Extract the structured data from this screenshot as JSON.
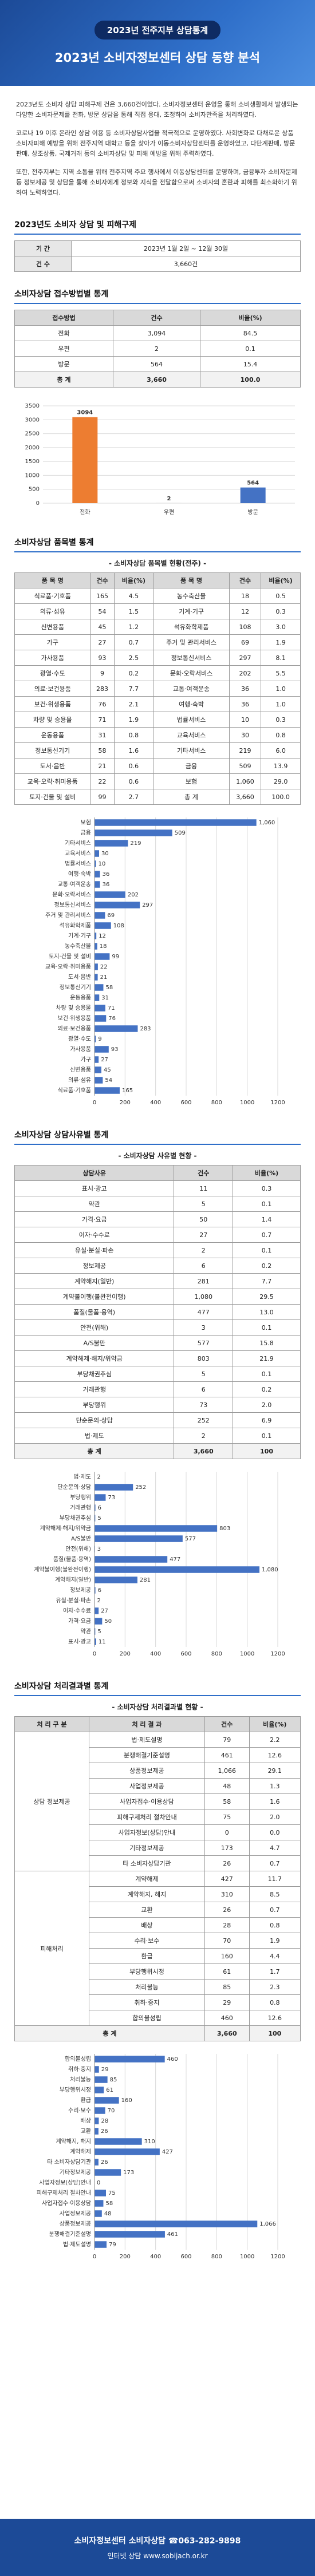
{
  "header": {
    "badge": "2023년 전주지부 상담통계",
    "title": "2023년 소비자정보센터 상담 동향 분석"
  },
  "intro": [
    "2023년도 소비자 상담 피해구제 건은 3,660건이었다. 소비자정보센터 운영을 통해 소비생활에서 발생되는 다양한 소비자문제를 전화, 방문 상담을 통해 직접 응대, 조정하여 소비자만족을 처리하였다.",
    "코로나 19 이후 온라인 상담 이용 등 소비자상담사업을 적극적으로 운영하였다. 사회변화로 다채로운 상품 소비자피해 예방을 위해 전주지역 대학교 등을 찾아가 이동소비자상담센터를 운영하였고, 다단계판매, 방문판매, 상조상품, 국제거래 등의 소비자상담 및 피해 예방을 위해 주력하였다.",
    "또한, 전주지부는 지역 소통을 위해 전주지역 주요 행사에서 이동상담센터를 운영하며, 금융투자 소비자문제 등 정보제공 및 상담을 통해 소비자에게 정보와 지식을 전달함으로써 소비자의 혼란과 피해를 최소화하기 위하여 노력하였다."
  ],
  "summary": {
    "heading": "2023년도 소비자 상담 및 피해구제",
    "rows": [
      [
        "기 간",
        "2023년 1월 2일 ~ 12월 30일"
      ],
      [
        "건 수",
        "3,660건"
      ]
    ]
  },
  "method": {
    "heading": "소비자상담 접수방법별 통계",
    "header": [
      "접수방법",
      "건수",
      "비율(%)"
    ],
    "rows": [
      [
        "전화",
        "3,094",
        "84.5"
      ],
      [
        "우편",
        "2",
        "0.1"
      ],
      [
        "방문",
        "564",
        "15.4"
      ],
      [
        "총 계",
        "3,660",
        "100.0"
      ]
    ]
  },
  "items": {
    "heading": "소비자상담 품목별 통계",
    "subtitle": "- 소비자상담 품목별 현황(전주) -",
    "header": [
      "품 목 명",
      "건수",
      "비율(%)",
      "품 목 명",
      "건수",
      "비율(%)"
    ],
    "rows": [
      [
        "식료품·기호품",
        "165",
        "4.5",
        "농수축산물",
        "18",
        "0.5"
      ],
      [
        "의류·섬유",
        "54",
        "1.5",
        "기계·기구",
        "12",
        "0.3"
      ],
      [
        "신변용품",
        "45",
        "1.2",
        "석유화학제품",
        "108",
        "3.0"
      ],
      [
        "가구",
        "27",
        "0.7",
        "주거 및 관리서비스",
        "69",
        "1.9"
      ],
      [
        "가사용품",
        "93",
        "2.5",
        "정보통신서비스",
        "297",
        "8.1"
      ],
      [
        "광열·수도",
        "9",
        "0.2",
        "문화·오락서비스",
        "202",
        "5.5"
      ],
      [
        "의료·보건용품",
        "283",
        "7.7",
        "교통·여객운송",
        "36",
        "1.0"
      ],
      [
        "보건·위생용품",
        "76",
        "2.1",
        "여행·숙박",
        "36",
        "1.0"
      ],
      [
        "차량 및 승용물",
        "71",
        "1.9",
        "법률서비스",
        "10",
        "0.3"
      ],
      [
        "운동용품",
        "31",
        "0.8",
        "교육서비스",
        "30",
        "0.8"
      ],
      [
        "정보통신기기",
        "58",
        "1.6",
        "기타서비스",
        "219",
        "6.0"
      ],
      [
        "도서·음반",
        "21",
        "0.6",
        "금융",
        "509",
        "13.9"
      ],
      [
        "교육·오락·취미용품",
        "22",
        "0.6",
        "보험",
        "1,060",
        "29.0"
      ],
      [
        "토지·건물 및 설비",
        "99",
        "2.7",
        "총 계",
        "3,660",
        "100.0"
      ]
    ]
  },
  "reasons": {
    "heading": "소비자상담 상담사유별 통계",
    "subtitle": "- 소비자상담 사유별 현황 -",
    "header": [
      "상담사유",
      "건수",
      "비율(%)"
    ],
    "rows": [
      [
        "표시·광고",
        "11",
        "0.3"
      ],
      [
        "약관",
        "5",
        "0.1"
      ],
      [
        "가격·요금",
        "50",
        "1.4"
      ],
      [
        "이자·수수료",
        "27",
        "0.7"
      ],
      [
        "유실·분실·파손",
        "2",
        "0.1"
      ],
      [
        "정보제공",
        "6",
        "0.2"
      ],
      [
        "계약해지(일반)",
        "281",
        "7.7"
      ],
      [
        "계약불이행(불완전이행)",
        "1,080",
        "29.5"
      ],
      [
        "품질(물품·용역)",
        "477",
        "13.0"
      ],
      [
        "안전(위해)",
        "3",
        "0.1"
      ],
      [
        "A/S불만",
        "577",
        "15.8"
      ],
      [
        "계약해제·해지/위약금",
        "803",
        "21.9"
      ],
      [
        "부당채권추심",
        "5",
        "0.1"
      ],
      [
        "거래관행",
        "6",
        "0.2"
      ],
      [
        "부당행위",
        "73",
        "2.0"
      ],
      [
        "단순문의·상담",
        "252",
        "6.9"
      ],
      [
        "법·제도",
        "2",
        "0.1"
      ],
      [
        "총 계",
        "3,660",
        "100"
      ]
    ]
  },
  "results": {
    "heading": "소비자상담 처리결과별 통계",
    "subtitle": "- 소비자상담 처리결과별 현황 -",
    "header": [
      "처 리 구 분",
      "처 리 결 과",
      "건수",
      "비율(%)"
    ],
    "groups": [
      {
        "name": "상담 정보제공",
        "rows": [
          [
            "법·제도설명",
            "79",
            "2.2"
          ],
          [
            "분쟁해결기준설명",
            "461",
            "12.6"
          ],
          [
            "상품정보제공",
            "1,066",
            "29.1"
          ],
          [
            "사업정보제공",
            "48",
            "1.3"
          ],
          [
            "사업자접수·이용상담",
            "58",
            "1.6"
          ],
          [
            "피해구제처리 절차안내",
            "75",
            "2.0"
          ],
          [
            "사업자정보(상담)안내",
            "0",
            "0.0"
          ],
          [
            "기타정보제공",
            "173",
            "4.7"
          ],
          [
            "타 소비자상담기관",
            "26",
            "0.7"
          ]
        ]
      },
      {
        "name": "피해처리",
        "rows": [
          [
            "계약해제",
            "427",
            "11.7"
          ],
          [
            "계약해지, 해지",
            "310",
            "8.5"
          ],
          [
            "교환",
            "26",
            "0.7"
          ],
          [
            "배상",
            "28",
            "0.8"
          ],
          [
            "수리·보수",
            "70",
            "1.9"
          ],
          [
            "환급",
            "160",
            "4.4"
          ],
          [
            "부당행위시정",
            "61",
            "1.7"
          ],
          [
            "처리불능",
            "85",
            "2.3"
          ],
          [
            "취하·중지",
            "29",
            "0.8"
          ],
          [
            "합의불성립",
            "460",
            "12.6"
          ]
        ]
      }
    ],
    "total": [
      "총 계",
      "3,660",
      "100"
    ]
  },
  "chart_data": [
    {
      "type": "bar",
      "categories": [
        "전화",
        "우편",
        "방문"
      ],
      "values": [
        3094,
        2,
        564
      ],
      "colors": [
        "#ed7d31",
        "#a5a5a5",
        "#4472c4"
      ],
      "ylim": [
        0,
        3500
      ],
      "yticks": [
        0,
        500,
        1000,
        1500,
        2000,
        2500,
        3000,
        3500
      ],
      "grid": true
    },
    {
      "type": "barh",
      "color": "#4472c4",
      "grid": true,
      "xlim": [
        0,
        1200
      ],
      "xticks": [
        0,
        200,
        400,
        600,
        800,
        1000,
        1200
      ],
      "categories": [
        "보험",
        "금융",
        "기타서비스",
        "교육서비스",
        "법률서비스",
        "여행·숙박",
        "교통·여객운송",
        "문화·오락서비스",
        "정보통신서비스",
        "주거 및 관리서비스",
        "석유화학제품",
        "기계·기구",
        "농수축산물",
        "토지·건물 및 설비",
        "교육·오락·취미용품",
        "도서·음반",
        "정보통신기기",
        "운동용품",
        "차량 및 승용물",
        "보건·위생용품",
        "의료·보건용품",
        "광열·수도",
        "가사용품",
        "가구",
        "신변용품",
        "의류·섬유",
        "식료품·기호품"
      ],
      "values": [
        1060,
        509,
        219,
        30,
        10,
        36,
        36,
        202,
        297,
        69,
        108,
        12,
        18,
        99,
        22,
        21,
        58,
        31,
        71,
        76,
        283,
        9,
        93,
        27,
        45,
        54,
        165
      ],
      "value_labels": [
        "1,060",
        "509",
        "219",
        "30",
        "10",
        "36",
        "36",
        "202",
        "297",
        "69",
        "108",
        "12",
        "18",
        "99",
        "22",
        "21",
        "58",
        "31",
        "71",
        "76",
        "283",
        "9",
        "93",
        "27",
        "45",
        "54",
        "165"
      ]
    },
    {
      "type": "barh",
      "color": "#4472c4",
      "grid": true,
      "xlim": [
        0,
        1200
      ],
      "xticks": [
        0,
        200,
        400,
        600,
        800,
        1000,
        1200
      ],
      "categories": [
        "법·제도",
        "단순문의·상담",
        "부당행위",
        "거래관행",
        "부당채권추심",
        "계약해제·해지/위약금",
        "A/S불만",
        "안전(위해)",
        "품질(물품·용역)",
        "계약불이행(불완전이행)",
        "계약해지(일반)",
        "정보제공",
        "유실·분실·파손",
        "이자·수수료",
        "가격·요금",
        "약관",
        "표시·광고"
      ],
      "values": [
        2,
        252,
        73,
        6,
        5,
        803,
        577,
        3,
        477,
        1080,
        281,
        6,
        2,
        27,
        50,
        5,
        11
      ],
      "value_labels": [
        "2",
        "252",
        "73",
        "6",
        "5",
        "803",
        "577",
        "3",
        "477",
        "1,080",
        "281",
        "6",
        "2",
        "27",
        "50",
        "5",
        "11"
      ]
    },
    {
      "type": "barh",
      "color": "#4472c4",
      "grid": true,
      "xlim": [
        0,
        1200
      ],
      "xticks": [
        0,
        200,
        400,
        600,
        800,
        1000,
        1200
      ],
      "categories": [
        "합의불성립",
        "취하·중지",
        "처리불능",
        "부당행위시정",
        "환급",
        "수리·보수",
        "배상",
        "교환",
        "계약해지, 해지",
        "계약해제",
        "타 소비자상담기관",
        "기타정보제공",
        "사업자정보(상담)안내",
        "피해구제처리 절차안내",
        "사업자접수·이용상담",
        "사업정보제공",
        "상품정보제공",
        "분쟁해결기준설명",
        "법·제도설명"
      ],
      "values": [
        460,
        29,
        85,
        61,
        160,
        70,
        28,
        26,
        310,
        427,
        26,
        173,
        0,
        75,
        58,
        48,
        1066,
        461,
        79
      ],
      "value_labels": [
        "460",
        "29",
        "85",
        "61",
        "160",
        "70",
        "28",
        "26",
        "310",
        "427",
        "26",
        "173",
        "0",
        "75",
        "58",
        "48",
        "1,066",
        "461",
        "79"
      ]
    }
  ],
  "footer": {
    "line1": "소비자정보센터 소비자상담 ☎063-282-9898",
    "line2": "인터넷 상담 www.sobijach.or.kr"
  }
}
